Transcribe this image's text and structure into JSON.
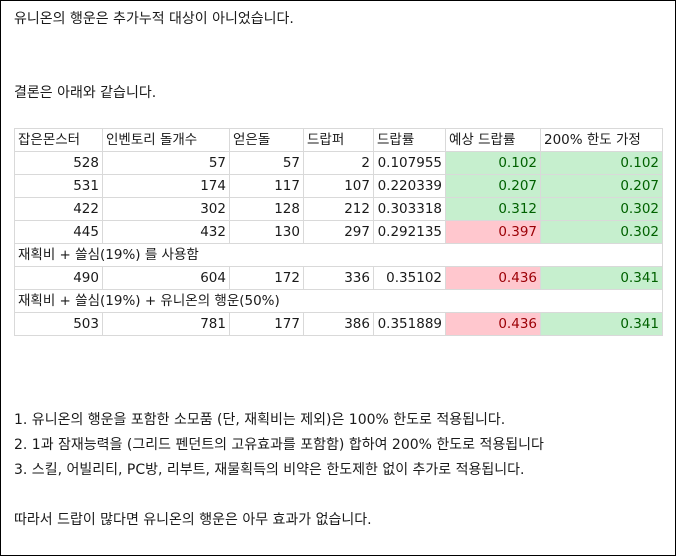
{
  "intro": "유니온의 행운은 추가누적 대상이 아니었습니다.",
  "conclusion": "결론은 아래와 같습니다.",
  "table": {
    "headers": [
      "잡은몬스터",
      "인벤토리 돌개수",
      "얻은돌",
      "드랍퍼",
      "드랍률",
      "예상 드랍률",
      "200% 한도 가정"
    ],
    "rows": [
      [
        "528",
        "57",
        "57",
        "2",
        "0.107955",
        "0.102",
        "0.102"
      ],
      [
        "531",
        "174",
        "117",
        "107",
        "0.220339",
        "0.207",
        "0.207"
      ],
      [
        "422",
        "302",
        "128",
        "212",
        "0.303318",
        "0.312",
        "0.302"
      ],
      [
        "445",
        "432",
        "130",
        "297",
        "0.292135",
        "0.397",
        "0.302"
      ]
    ],
    "note1": "재획비 + 쓸심(19%) 를 사용함",
    "row5": [
      "490",
      "604",
      "172",
      "336",
      "0.35102",
      "0.436",
      "0.341"
    ],
    "note2": "재획비 + 쓸심(19%) + 유니온의 행운(50%)",
    "row6": [
      "503",
      "781",
      "177",
      "386",
      "0.351889",
      "0.436",
      "0.341"
    ]
  },
  "points": [
    "1. 유니온의 행운을 포함한 소모품 (단, 재획비는 제외)은 100% 한도로 적용됩니다.",
    "2. 1과 잠재능력을 (그리드 펜던트의 고유효과를 포함함) 합하여 200% 한도로 적용됩니다",
    "3. 스킬, 어빌리티, PC방, 리부트, 재물획득의 비약은 한도제한 없이 추가로 적용됩니다."
  ],
  "final": "따라서 드랍이 많다면 유니온의 행운은 아무 효과가 없습니다.",
  "colors": {
    "good_bg": "#c6efce",
    "good_fg": "#006100",
    "bad_bg": "#ffc7ce",
    "bad_fg": "#9c0006"
  }
}
